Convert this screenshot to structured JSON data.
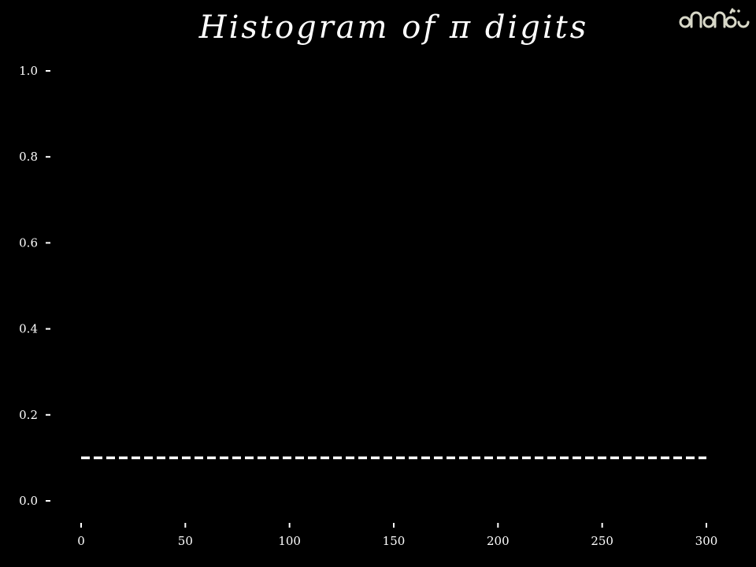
{
  "chart_data": {
    "type": "line",
    "title": "Histogram of π digits",
    "xlabel": "",
    "ylabel": "",
    "xlim": [
      0,
      300
    ],
    "ylim": [
      0,
      1.0
    ],
    "x_ticks": [
      0,
      50,
      100,
      150,
      200,
      250,
      300
    ],
    "y_ticks": [
      0.0,
      0.2,
      0.4,
      0.6,
      0.8,
      1.0
    ],
    "x_tick_labels": [
      "0",
      "50",
      "100",
      "150",
      "200",
      "250",
      "300"
    ],
    "y_tick_labels": [
      "0.0",
      "0.2",
      "0.4",
      "0.6",
      "0.8",
      "1.0"
    ],
    "series": [
      {
        "style": "dashed",
        "x": [
          0,
          300
        ],
        "y": [
          0.1,
          0.1
        ]
      }
    ],
    "grid": false,
    "legend": "none"
  },
  "colors": {
    "background": "#000000",
    "foreground": "#ffffff",
    "logo": "#d8d8c8"
  },
  "logo": {
    "icon": "logo-icon"
  }
}
